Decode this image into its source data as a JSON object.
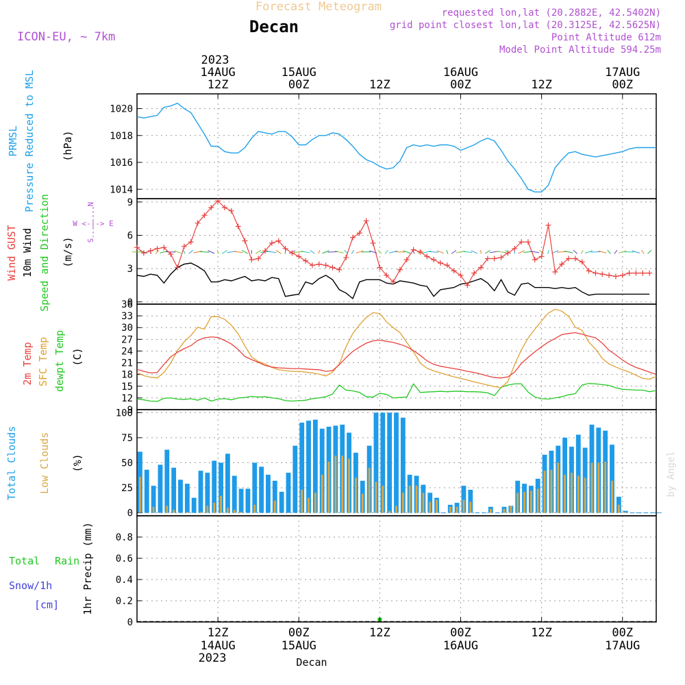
{
  "header": {
    "product": "Forecast Meteogram",
    "location": "Decan",
    "model": "ICON-EU, ~ 7km",
    "requested": "requested lon,lat (20.2882E, 42.5402N)",
    "gridpoint": "grid point closest lon,lat (20.3125E, 42.5625N)",
    "point_alt": "Point Altitude 612m",
    "model_alt": "Model Point Altitude 594.25m",
    "year": "2023"
  },
  "footer": {
    "location": "Decan",
    "year": "2023",
    "credit": "by Angel"
  },
  "time_axis": {
    "hour_labels": [
      "12Z",
      "00Z",
      "12Z",
      "00Z",
      "12Z",
      "00Z"
    ],
    "date_labels": [
      "14AUG",
      "15AUG",
      "",
      "16AUG",
      "",
      "17AUG"
    ],
    "tick_hours": [
      12,
      24,
      36,
      48,
      60,
      72
    ]
  },
  "panel_labels": {
    "pressure": [
      "PRMSL",
      "Pressure Reduced to MSL",
      "(hPa)"
    ],
    "wind": [
      "Wind GUST",
      "10m Wind",
      "Speed and Direction",
      "(m/s)"
    ],
    "compass": [
      "N",
      "S",
      "W <-|-> E"
    ],
    "temp": [
      "2m Temp",
      "SFC Temp",
      "dewpt Temp",
      "(C)"
    ],
    "clouds": [
      "Total Clouds",
      "Low Clouds",
      "(%)"
    ],
    "precip": [
      "Total",
      "Rain",
      "Snow/1h",
      "[cm]",
      "1hr Precip (mm)"
    ]
  },
  "colors": {
    "pressure": "#1ea0e8",
    "gust": "#e8403c",
    "wind": "#000000",
    "sfc_temp": "#e0a030",
    "dewpt": "#20c820",
    "total_clouds": "#1e9be8",
    "low_clouds": "#d8a848",
    "rain": "#20c820",
    "snow": "#4040e0",
    "meta": "#b050d0",
    "title_faint": "#f0c890"
  },
  "chart_data": [
    {
      "type": "line",
      "title": "PRMSL",
      "ylabel": "(hPa)",
      "ylim": [
        1013.3,
        1021.1
      ],
      "yticks": [
        1014,
        1016,
        1018,
        1020
      ],
      "x_unit": "hours from 14AUG 00Z",
      "x": [
        0,
        1,
        2,
        3,
        4,
        5,
        6,
        7,
        8,
        9,
        10,
        11,
        12,
        13,
        14,
        15,
        16,
        17,
        18,
        19,
        20,
        21,
        22,
        23,
        24,
        25,
        26,
        27,
        28,
        29,
        30,
        31,
        32,
        33,
        34,
        35,
        36,
        37,
        38,
        39,
        40,
        41,
        42,
        43,
        44,
        45,
        46,
        47,
        48,
        49,
        50,
        51,
        52,
        53,
        54,
        55,
        56,
        57,
        58,
        59,
        60,
        61,
        62,
        63,
        64,
        65,
        66,
        67,
        68,
        69,
        70,
        71,
        72,
        73,
        74,
        75,
        76,
        77
      ],
      "series": [
        {
          "name": "PRMSL",
          "values": [
            1019.4,
            1019.3,
            1019.4,
            1019.5,
            1020.1,
            1020.2,
            1020.4,
            1020.0,
            1019.7,
            1018.9,
            1018.1,
            1017.2,
            1017.2,
            1016.8,
            1016.7,
            1016.7,
            1017.1,
            1017.8,
            1018.3,
            1018.2,
            1018.1,
            1018.3,
            1018.3,
            1017.9,
            1017.3,
            1017.3,
            1017.7,
            1018.0,
            1018.0,
            1018.2,
            1018.1,
            1017.7,
            1017.2,
            1016.6,
            1016.2,
            1016.0,
            1015.7,
            1015.5,
            1015.6,
            1016.1,
            1017.1,
            1017.3,
            1017.2,
            1017.3,
            1017.2,
            1017.3,
            1017.3,
            1017.2,
            1016.9,
            1017.1,
            1017.3,
            1017.6,
            1017.8,
            1017.6,
            1016.9,
            1016.1,
            1015.5,
            1014.8,
            1014.0,
            1013.8,
            1013.8,
            1014.3,
            1015.6,
            1016.2,
            1016.7,
            1016.8,
            1016.6,
            1016.5,
            1016.4,
            1016.5,
            1016.6,
            1016.7,
            1016.8,
            1017.0,
            1017.1,
            1017.1,
            1017.1,
            1017.1
          ]
        }
      ]
    },
    {
      "type": "line",
      "title": "Wind",
      "ylabel": "(m/s)",
      "ylim": [
        -0.2,
        9.3
      ],
      "yticks": [
        0,
        3,
        6,
        9
      ],
      "x_unit": "hours from 14AUG 00Z",
      "x": [
        0,
        1,
        2,
        3,
        4,
        5,
        6,
        7,
        8,
        9,
        10,
        11,
        12,
        13,
        14,
        15,
        16,
        17,
        18,
        19,
        20,
        21,
        22,
        23,
        24,
        25,
        26,
        27,
        28,
        29,
        30,
        31,
        32,
        33,
        34,
        35,
        36,
        37,
        38,
        39,
        40,
        41,
        42,
        43,
        44,
        45,
        46,
        47,
        48,
        49,
        50,
        51,
        52,
        53,
        54,
        55,
        56,
        57,
        58,
        59,
        60,
        61,
        62,
        63,
        64,
        65,
        66,
        67,
        68,
        69,
        70,
        71,
        72,
        73,
        74,
        75,
        76
      ],
      "series": [
        {
          "name": "Wind GUST",
          "values": [
            4.9,
            4.4,
            4.6,
            4.8,
            4.9,
            4.3,
            3.1,
            5.0,
            5.4,
            7.1,
            7.8,
            8.5,
            9.1,
            8.5,
            8.2,
            6.8,
            5.5,
            3.8,
            3.9,
            4.6,
            5.3,
            5.5,
            4.8,
            4.4,
            4.1,
            3.7,
            3.3,
            3.4,
            3.3,
            3.1,
            2.9,
            4.0,
            5.8,
            6.2,
            7.3,
            5.3,
            3.1,
            2.4,
            1.8,
            2.9,
            3.8,
            4.7,
            4.5,
            4.1,
            3.8,
            3.5,
            3.3,
            2.8,
            2.4,
            1.5,
            2.6,
            3.1,
            3.9,
            3.9,
            4.0,
            4.4,
            4.8,
            5.4,
            5.4,
            3.8,
            4.1,
            6.9,
            2.7,
            3.4,
            3.9,
            3.9,
            3.6,
            2.8,
            2.6,
            2.5,
            2.4,
            2.3,
            2.4,
            2.6,
            2.6,
            2.6,
            2.6
          ]
        },
        {
          "name": "10m Wind",
          "values": [
            2.4,
            2.3,
            2.5,
            2.4,
            1.7,
            2.5,
            3.1,
            3.4,
            3.5,
            3.2,
            2.8,
            1.8,
            1.8,
            2.0,
            1.9,
            2.1,
            2.3,
            1.9,
            2.0,
            1.9,
            2.2,
            2.1,
            0.5,
            0.6,
            0.7,
            1.8,
            1.6,
            2.1,
            2.4,
            2.0,
            1.1,
            0.8,
            0.3,
            1.8,
            2.0,
            2.0,
            2.0,
            1.7,
            1.6,
            1.9,
            1.8,
            1.7,
            1.5,
            1.4,
            0.5,
            1.1,
            1.2,
            1.3,
            1.6,
            1.7,
            1.9,
            2.1,
            1.7,
            1.0,
            2.0,
            0.9,
            0.6,
            1.6,
            1.7,
            1.3,
            1.3,
            1.3,
            1.2,
            1.3,
            1.2,
            1.3,
            0.9,
            0.6,
            0.7,
            0.7,
            0.7,
            0.7,
            0.7,
            0.7,
            0.7,
            0.7,
            0.7
          ]
        }
      ]
    },
    {
      "type": "line",
      "title": "Temperature",
      "ylabel": "(C)",
      "ylim": [
        9,
        36
      ],
      "yticks": [
        9,
        12,
        15,
        18,
        21,
        24,
        27,
        30,
        33,
        36
      ],
      "x_unit": "hours from 14AUG 00Z",
      "x": [
        0,
        1,
        2,
        3,
        4,
        5,
        6,
        7,
        8,
        9,
        10,
        11,
        12,
        13,
        14,
        15,
        16,
        17,
        18,
        19,
        20,
        21,
        22,
        23,
        24,
        25,
        26,
        27,
        28,
        29,
        30,
        31,
        32,
        33,
        34,
        35,
        36,
        37,
        38,
        39,
        40,
        41,
        42,
        43,
        44,
        45,
        46,
        47,
        48,
        49,
        50,
        51,
        52,
        53,
        54,
        55,
        56,
        57,
        58,
        59,
        60,
        61,
        62,
        63,
        64,
        65,
        66,
        67,
        68,
        69,
        70,
        71,
        72,
        73,
        74,
        75,
        76,
        77
      ],
      "series": [
        {
          "name": "2m Temp",
          "values": [
            19.3,
            18.8,
            18.4,
            18.5,
            20.6,
            22.5,
            23.7,
            24.6,
            25.4,
            26.7,
            27.4,
            27.6,
            27.5,
            26.7,
            25.8,
            24.4,
            22.6,
            21.8,
            21.1,
            20.3,
            19.9,
            19.7,
            19.6,
            19.5,
            19.5,
            19.4,
            19.3,
            19.2,
            18.8,
            19.0,
            20.5,
            22.3,
            23.9,
            25.0,
            26.0,
            26.6,
            26.8,
            26.5,
            26.2,
            25.7,
            25.1,
            24.1,
            22.9,
            21.5,
            20.6,
            20.1,
            19.8,
            19.5,
            19.2,
            18.8,
            18.5,
            18.1,
            17.6,
            17.2,
            17.1,
            17.4,
            18.6,
            20.8,
            22.4,
            23.8,
            25.1,
            26.3,
            27.2,
            28.2,
            28.5,
            28.7,
            28.3,
            27.8,
            27.4,
            26.0,
            24.2,
            23.0,
            21.7,
            20.6,
            19.8,
            19.2,
            18.6,
            18.0
          ]
        },
        {
          "name": "SFC Temp",
          "values": [
            18.5,
            17.7,
            17.3,
            17.1,
            18.5,
            20.9,
            24.1,
            26.4,
            28.0,
            30.1,
            29.6,
            32.8,
            32.8,
            32.1,
            30.6,
            28.4,
            25.3,
            22.5,
            21.3,
            20.7,
            19.8,
            19.2,
            19.0,
            18.8,
            18.8,
            18.6,
            18.4,
            18.1,
            17.6,
            18.6,
            20.7,
            25.1,
            28.5,
            30.7,
            32.6,
            33.8,
            33.6,
            31.5,
            30.0,
            28.7,
            26.2,
            23.8,
            20.9,
            19.6,
            18.9,
            18.4,
            17.9,
            17.4,
            17.0,
            16.6,
            16.1,
            15.7,
            15.3,
            14.9,
            14.6,
            16.2,
            20.5,
            24.3,
            27.3,
            29.6,
            31.7,
            33.7,
            34.7,
            34.2,
            32.9,
            30.1,
            29.3,
            26.3,
            24.5,
            22.1,
            20.7,
            19.9,
            19.2,
            18.6,
            17.8,
            17.0,
            16.8,
            17.5
          ]
        },
        {
          "name": "dewpt Temp",
          "values": [
            11.7,
            11.5,
            11.2,
            11.1,
            11.9,
            12.0,
            11.7,
            11.6,
            11.8,
            11.4,
            12.0,
            11.2,
            11.7,
            11.8,
            11.5,
            12.0,
            12.1,
            12.4,
            12.2,
            12.3,
            12.0,
            11.8,
            11.3,
            11.2,
            11.3,
            11.4,
            11.8,
            12.0,
            12.3,
            13.0,
            15.3,
            14.0,
            13.8,
            13.4,
            12.3,
            12.2,
            13.2,
            12.9,
            12.0,
            12.1,
            12.2,
            15.6,
            13.4,
            13.5,
            13.6,
            13.7,
            13.6,
            13.7,
            13.7,
            13.6,
            13.6,
            13.5,
            13.3,
            12.6,
            14.7,
            15.3,
            15.6,
            15.6,
            13.5,
            12.2,
            11.8,
            11.7,
            12.0,
            12.3,
            12.8,
            13.1,
            15.3,
            15.7,
            15.6,
            15.4,
            15.2,
            14.6,
            14.2,
            14.1,
            14.0,
            14.0,
            13.6,
            13.9
          ]
        }
      ]
    },
    {
      "type": "bar",
      "title": "Clouds",
      "ylabel": "(%)",
      "ylim": [
        -3,
        103
      ],
      "yticks": [
        0,
        25,
        50,
        75,
        100
      ],
      "x_unit": "hours from 14AUG 00Z",
      "x": [
        0,
        1,
        2,
        3,
        4,
        5,
        6,
        7,
        8,
        9,
        10,
        11,
        12,
        13,
        14,
        15,
        16,
        17,
        18,
        19,
        20,
        21,
        22,
        23,
        24,
        25,
        26,
        27,
        28,
        29,
        30,
        31,
        32,
        33,
        34,
        35,
        36,
        37,
        38,
        39,
        40,
        41,
        42,
        43,
        44,
        45,
        46,
        47,
        48,
        49,
        50,
        51,
        52,
        53,
        54,
        55,
        56,
        57,
        58,
        59,
        60,
        61,
        62,
        63,
        64,
        65,
        66,
        67,
        68,
        69,
        70,
        71,
        72,
        73,
        74,
        75,
        76,
        77
      ],
      "series": [
        {
          "name": "Total Clouds",
          "values": [
            61,
            43,
            27,
            48,
            63,
            45,
            33,
            29,
            15,
            42,
            40,
            52,
            50,
            59,
            37,
            24,
            24,
            50,
            46,
            38,
            32,
            21,
            40,
            67,
            90,
            92,
            93,
            84,
            86,
            87,
            88,
            80,
            60,
            32,
            67,
            100,
            100,
            100,
            100,
            95,
            38,
            37,
            28,
            20,
            15,
            0,
            8,
            10,
            27,
            23,
            0,
            0,
            6,
            0,
            6,
            7,
            32,
            29,
            27,
            34,
            58,
            62,
            67,
            75,
            66,
            78,
            65,
            88,
            85,
            82,
            68,
            16,
            2,
            0,
            0,
            0,
            0,
            0
          ]
        },
        {
          "name": "Low Clouds",
          "values": [
            36,
            0,
            6,
            0,
            7,
            3,
            0,
            1,
            0,
            1,
            7,
            10,
            17,
            5,
            3,
            1,
            0,
            8,
            0,
            0,
            12,
            0,
            0,
            0,
            23,
            15,
            20,
            38,
            51,
            57,
            57,
            54,
            35,
            19,
            45,
            31,
            27,
            2,
            7,
            20,
            27,
            27,
            20,
            11,
            13,
            0,
            6,
            6,
            13,
            11,
            0,
            0,
            4,
            0,
            4,
            7,
            20,
            21,
            22,
            24,
            42,
            43,
            50,
            38,
            40,
            37,
            35,
            50,
            50,
            51,
            32,
            8,
            1,
            0,
            0,
            0,
            0,
            0
          ]
        }
      ]
    },
    {
      "type": "bar",
      "title": "1hr Precip",
      "ylabel": "1hr Precip (mm)",
      "ylim": [
        0,
        1
      ],
      "yticks": [
        0,
        0.2,
        0.4,
        0.6,
        0.8
      ],
      "x_unit": "hours from 14AUG 00Z",
      "x": [
        36
      ],
      "series": [
        {
          "name": "Total Rain",
          "values": [
            0.02
          ]
        }
      ]
    }
  ]
}
